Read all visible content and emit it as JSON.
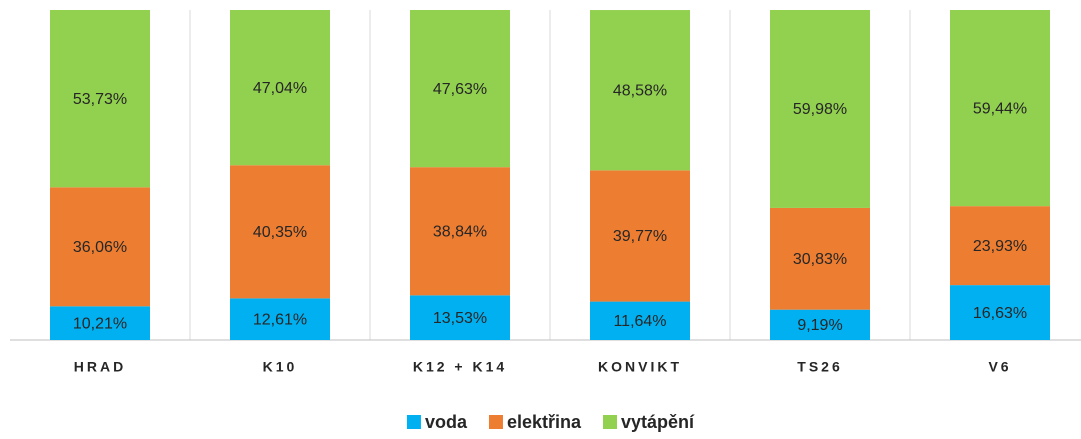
{
  "chart_data": {
    "type": "stacked_bar",
    "categories": [
      "HRAD",
      "K10",
      "K12 + K14",
      "KONVIKT",
      "TS26",
      "V6"
    ],
    "series": [
      {
        "name": "voda",
        "color": "#00b0f0",
        "values": [
          10.21,
          12.61,
          13.53,
          11.64,
          9.19,
          16.63
        ],
        "value_labels": [
          "10,21%",
          "12,61%",
          "13,53%",
          "11,64%",
          "9,19%",
          "16,63%"
        ]
      },
      {
        "name": "elektřina",
        "color": "#ed7d31",
        "values": [
          36.06,
          40.35,
          38.84,
          39.77,
          30.83,
          23.93
        ],
        "value_labels": [
          "36,06%",
          "40,35%",
          "38,84%",
          "39,77%",
          "30,83%",
          "23,93%"
        ]
      },
      {
        "name": "vytápění",
        "color": "#92d050",
        "values": [
          53.73,
          47.04,
          47.63,
          48.58,
          59.98,
          59.44
        ],
        "value_labels": [
          "53,73%",
          "47,04%",
          "47,63%",
          "48,58%",
          "59,98%",
          "59,44%"
        ]
      }
    ],
    "ylim": [
      0,
      100
    ],
    "legend": "bottom"
  }
}
